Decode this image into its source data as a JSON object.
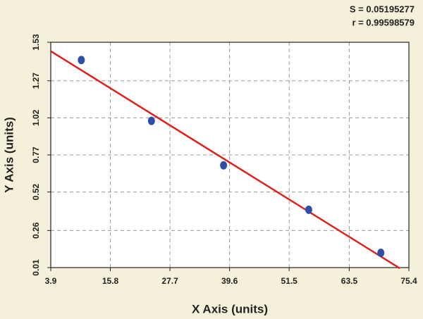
{
  "chart_data": {
    "type": "scatter",
    "annotations": [
      "S = 0.05195277",
      "r = 0.99598579"
    ],
    "x_label": "X Axis (units)",
    "y_label": "Y Axis (units)",
    "x": [
      10.0,
      24.0,
      38.4,
      55.4,
      69.8
    ],
    "values": [
      1.41,
      1.0,
      0.7,
      0.4,
      0.11
    ],
    "color": "#2e4ea8",
    "fit": {
      "x": [
        3.9,
        73.6
      ],
      "values": [
        1.47,
        0.005
      ],
      "color": "#e0201c"
    },
    "xlim": [
      3.9,
      75.4
    ],
    "xticks": [
      3.9,
      15.8,
      27.7,
      39.6,
      51.5,
      63.5,
      75.4
    ],
    "ylim": [
      0.01,
      1.53
    ],
    "yticks": [
      0.01,
      0.26,
      0.52,
      0.77,
      1.02,
      1.27,
      1.53
    ],
    "grid": true
  }
}
